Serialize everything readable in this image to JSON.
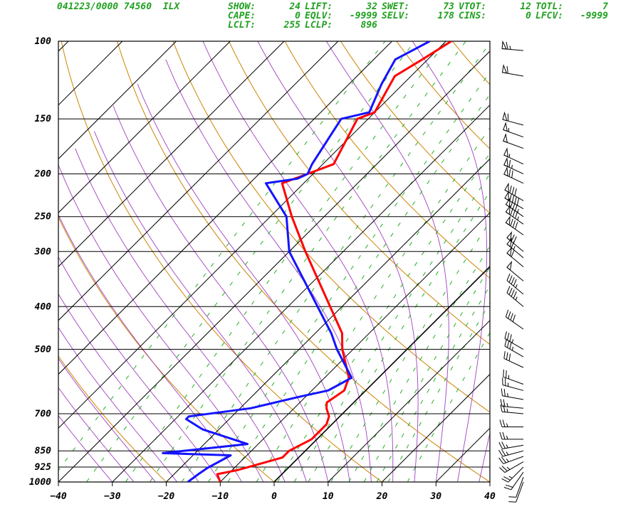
{
  "header": {
    "station_line": "041223/0000 74560  ILX",
    "indices": [
      {
        "label": "SHOW:",
        "value": "24"
      },
      {
        "label": "LIFT:",
        "value": "32"
      },
      {
        "label": "SWET:",
        "value": "73"
      },
      {
        "label": "VTOT:",
        "value": "12"
      },
      {
        "label": "TOTL:",
        "value": "7"
      },
      {
        "label": "CAPE:",
        "value": "0"
      },
      {
        "label": "EQLV:",
        "value": "-9999"
      },
      {
        "label": "SELV:",
        "value": "178"
      },
      {
        "label": "CINS:",
        "value": "0"
      },
      {
        "label": "LFCV:",
        "value": "-9999"
      },
      {
        "label": "LCLT:",
        "value": "255"
      },
      {
        "label": "LCLP:",
        "value": "896"
      }
    ]
  },
  "chart_data": {
    "type": "line",
    "title": "",
    "xlabel": "",
    "ylabel": "",
    "x_axis": {
      "min": -40,
      "max": 40,
      "ticks": [
        -40,
        -30,
        -20,
        -10,
        0,
        10,
        20,
        30,
        40
      ],
      "units": "deg C"
    },
    "y_axis": {
      "scale": "log-pressure",
      "min": 100,
      "max": 1000,
      "ticks": [
        100,
        150,
        200,
        250,
        300,
        400,
        500,
        700,
        850,
        925,
        1000
      ],
      "units": "hPa"
    },
    "skew": "isotherms tilted 45 degrees",
    "background_lines": {
      "isobars": "#000000",
      "isotherms": "#000000",
      "dry_adiabats": "#cc8400",
      "moist_adiabats": "#a040c0",
      "mixing_ratio": "#22b022"
    },
    "series": [
      {
        "color": "#ff0000",
        "points": [
          {
            "p": 1000,
            "t": -10.0
          },
          {
            "p": 960,
            "t": -12.0
          },
          {
            "p": 940,
            "t": -9.0
          },
          {
            "p": 880,
            "t": -3.0
          },
          {
            "p": 850,
            "t": -3.0
          },
          {
            "p": 800,
            "t": -1.0
          },
          {
            "p": 740,
            "t": -1.0
          },
          {
            "p": 710,
            "t": -2.0
          },
          {
            "p": 680,
            "t": -4.0
          },
          {
            "p": 660,
            "t": -5.0
          },
          {
            "p": 620,
            "t": -4.0
          },
          {
            "p": 580,
            "t": -5.5
          },
          {
            "p": 500,
            "t": -12.0
          },
          {
            "p": 460,
            "t": -15.0
          },
          {
            "p": 300,
            "t": -37.0
          },
          {
            "p": 250,
            "t": -46.0
          },
          {
            "p": 210,
            "t": -54.0
          },
          {
            "p": 200,
            "t": -51.0
          },
          {
            "p": 190,
            "t": -48.0
          },
          {
            "p": 150,
            "t": -52.0
          },
          {
            "p": 145,
            "t": -50.0
          },
          {
            "p": 120,
            "t": -53.0
          },
          {
            "p": 110,
            "t": -51.0
          },
          {
            "p": 100,
            "t": -49.0
          }
        ]
      },
      {
        "color": "#1414ff",
        "points": [
          {
            "p": 1000,
            "t": -16.0
          },
          {
            "p": 960,
            "t": -15.5
          },
          {
            "p": 930,
            "t": -15.0
          },
          {
            "p": 870,
            "t": -13.0
          },
          {
            "p": 860,
            "t": -26.0
          },
          {
            "p": 820,
            "t": -12.0
          },
          {
            "p": 760,
            "t": -23.0
          },
          {
            "p": 720,
            "t": -28.0
          },
          {
            "p": 710,
            "t": -28.0
          },
          {
            "p": 680,
            "t": -18.0
          },
          {
            "p": 640,
            "t": -11.0
          },
          {
            "p": 620,
            "t": -7.0
          },
          {
            "p": 600,
            "t": -6.0
          },
          {
            "p": 580,
            "t": -5.0
          },
          {
            "p": 500,
            "t": -13.0
          },
          {
            "p": 460,
            "t": -17.0
          },
          {
            "p": 300,
            "t": -40.0
          },
          {
            "p": 250,
            "t": -47.0
          },
          {
            "p": 210,
            "t": -57.0
          },
          {
            "p": 205,
            "t": -52.0
          },
          {
            "p": 200,
            "t": -51.0
          },
          {
            "p": 190,
            "t": -52.0
          },
          {
            "p": 150,
            "t": -55.0
          },
          {
            "p": 145,
            "t": -51.0
          },
          {
            "p": 125,
            "t": -54.0
          },
          {
            "p": 110,
            "t": -56.0
          },
          {
            "p": 100,
            "t": -53.0
          }
        ]
      }
    ],
    "wind_barbs": [
      {
        "p": 1000,
        "dir": 200,
        "spd": 10
      },
      {
        "p": 975,
        "dir": 200,
        "spd": 10
      },
      {
        "p": 950,
        "dir": 215,
        "spd": 20
      },
      {
        "p": 925,
        "dir": 225,
        "spd": 25
      },
      {
        "p": 900,
        "dir": 240,
        "spd": 25
      },
      {
        "p": 875,
        "dir": 250,
        "spd": 25
      },
      {
        "p": 850,
        "dir": 255,
        "spd": 25
      },
      {
        "p": 825,
        "dir": 260,
        "spd": 25
      },
      {
        "p": 800,
        "dir": 270,
        "spd": 25
      },
      {
        "p": 750,
        "dir": 270,
        "spd": 25
      },
      {
        "p": 700,
        "dir": 275,
        "spd": 25
      },
      {
        "p": 680,
        "dir": 275,
        "spd": 25
      },
      {
        "p": 650,
        "dir": 280,
        "spd": 25
      },
      {
        "p": 620,
        "dir": 285,
        "spd": 25
      },
      {
        "p": 600,
        "dir": 290,
        "spd": 25
      },
      {
        "p": 550,
        "dir": 295,
        "spd": 30
      },
      {
        "p": 520,
        "dir": 300,
        "spd": 35
      },
      {
        "p": 500,
        "dir": 300,
        "spd": 35
      },
      {
        "p": 450,
        "dir": 305,
        "spd": 40
      },
      {
        "p": 400,
        "dir": 310,
        "spd": 45
      },
      {
        "p": 375,
        "dir": 310,
        "spd": 45
      },
      {
        "p": 350,
        "dir": 310,
        "spd": 50
      },
      {
        "p": 325,
        "dir": 310,
        "spd": 60
      },
      {
        "p": 310,
        "dir": 310,
        "spd": 65
      },
      {
        "p": 300,
        "dir": 310,
        "spd": 70
      },
      {
        "p": 275,
        "dir": 305,
        "spd": 80
      },
      {
        "p": 260,
        "dir": 305,
        "spd": 85
      },
      {
        "p": 250,
        "dir": 305,
        "spd": 85
      },
      {
        "p": 240,
        "dir": 300,
        "spd": 90
      },
      {
        "p": 230,
        "dir": 300,
        "spd": 80
      },
      {
        "p": 210,
        "dir": 295,
        "spd": 70
      },
      {
        "p": 200,
        "dir": 295,
        "spd": 65
      },
      {
        "p": 190,
        "dir": 295,
        "spd": 55
      },
      {
        "p": 175,
        "dir": 290,
        "spd": 50
      },
      {
        "p": 165,
        "dir": 290,
        "spd": 55
      },
      {
        "p": 155,
        "dir": 285,
        "spd": 60
      },
      {
        "p": 120,
        "dir": 280,
        "spd": 60
      },
      {
        "p": 105,
        "dir": 275,
        "spd": 65
      }
    ]
  }
}
